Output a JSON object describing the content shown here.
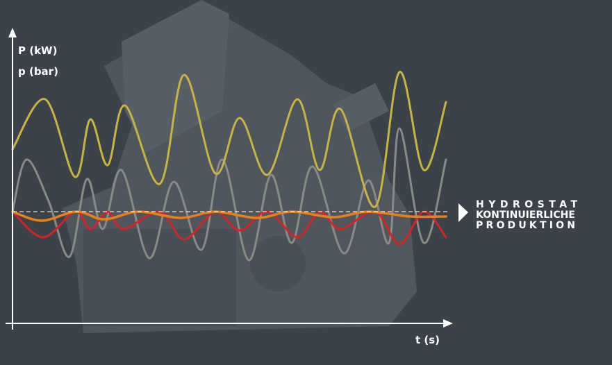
{
  "axis_labels": {
    "y1": "P (kW)",
    "y2": "p (bar)",
    "x": "t (s)"
  },
  "callout": {
    "line1": "HYDROSTAT",
    "line2": "KONTINUIERLICHE",
    "line3": "PRODUKTION"
  }
}
